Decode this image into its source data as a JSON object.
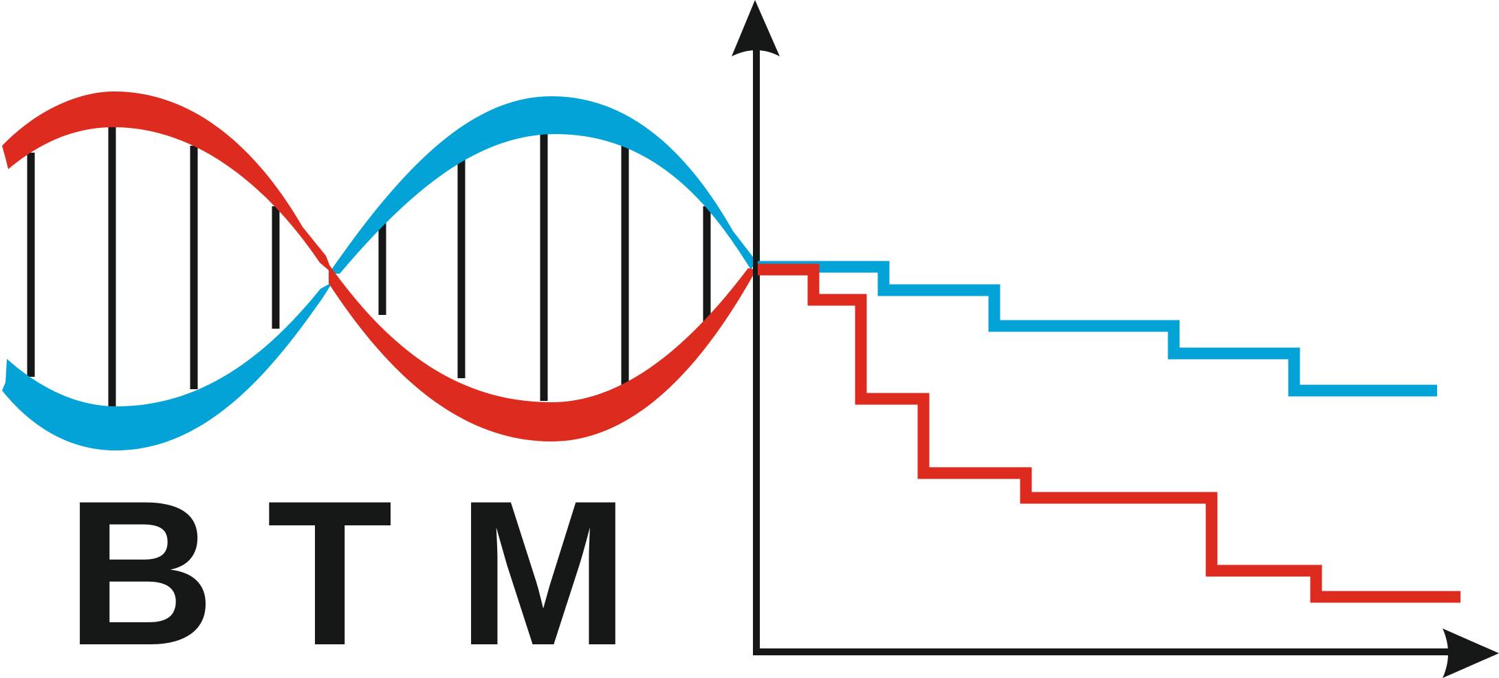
{
  "logo": {
    "letters": [
      "B",
      "T",
      "M"
    ],
    "colors": {
      "red": "#dd2c1f",
      "blue": "#03a3d8",
      "dark": "#161817",
      "background": "#ffffff"
    },
    "icons": [
      "dna-helix-icon",
      "step-chart-icon",
      "axis-arrow-icon"
    ]
  }
}
